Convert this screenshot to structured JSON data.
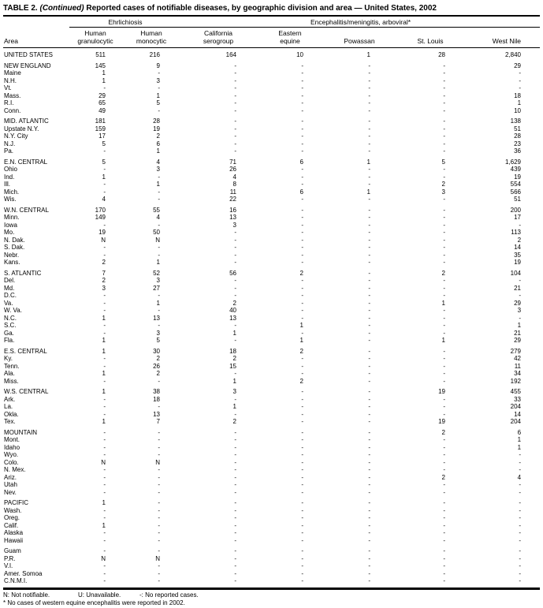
{
  "table": {
    "title": {
      "label": "TABLE 2.",
      "continued": "(Continued)",
      "rest": "Reported cases of notifiable diseases, by geographic division and area — United States, 2002"
    },
    "col_groups": [
      {
        "label": "Ehrlichiosis",
        "span": 2
      },
      {
        "label": "Encephalitis/meningitis, arboviral*",
        "span": 5
      }
    ],
    "columns": [
      "Area",
      "Human\ngranulocytic",
      "Human\nmonocytic",
      "California\nserogroup",
      "Eastern\nequine",
      "Powassan",
      "St. Louis",
      "West Nile"
    ],
    "groups": [
      {
        "rows": [
          [
            "UNITED STATES",
            "511",
            "216",
            "164",
            "10",
            "1",
            "28",
            "2,840"
          ]
        ]
      },
      {
        "rows": [
          [
            "NEW ENGLAND",
            "145",
            "9",
            "-",
            "-",
            "-",
            "-",
            "29"
          ],
          [
            "Maine",
            "1",
            "-",
            "-",
            "-",
            "-",
            "-",
            "-"
          ],
          [
            "N.H.",
            "1",
            "3",
            "-",
            "-",
            "-",
            "-",
            "-"
          ],
          [
            "Vt.",
            "-",
            "-",
            "-",
            "-",
            "-",
            "-",
            "-"
          ],
          [
            "Mass.",
            "29",
            "1",
            "-",
            "-",
            "-",
            "-",
            "18"
          ],
          [
            "R.I.",
            "65",
            "5",
            "-",
            "-",
            "-",
            "-",
            "1"
          ],
          [
            "Conn.",
            "49",
            "-",
            "-",
            "-",
            "-",
            "-",
            "10"
          ]
        ]
      },
      {
        "rows": [
          [
            "MID. ATLANTIC",
            "181",
            "28",
            "-",
            "-",
            "-",
            "-",
            "138"
          ],
          [
            "Upstate N.Y.",
            "159",
            "19",
            "-",
            "-",
            "-",
            "-",
            "51"
          ],
          [
            "N.Y. City",
            "17",
            "2",
            "-",
            "-",
            "-",
            "-",
            "28"
          ],
          [
            "N.J.",
            "5",
            "6",
            "-",
            "-",
            "-",
            "-",
            "23"
          ],
          [
            "Pa.",
            "-",
            "1",
            "-",
            "-",
            "-",
            "-",
            "36"
          ]
        ]
      },
      {
        "rows": [
          [
            "E.N. CENTRAL",
            "5",
            "4",
            "71",
            "6",
            "1",
            "5",
            "1,629"
          ],
          [
            "Ohio",
            "-",
            "3",
            "26",
            "-",
            "-",
            "-",
            "439"
          ],
          [
            "Ind.",
            "1",
            "-",
            "4",
            "-",
            "-",
            "-",
            "19"
          ],
          [
            "Ill.",
            "-",
            "1",
            "8",
            "-",
            "-",
            "2",
            "554"
          ],
          [
            "Mich.",
            "-",
            "-",
            "11",
            "6",
            "1",
            "3",
            "566"
          ],
          [
            "Wis.",
            "4",
            "-",
            "22",
            "-",
            "-",
            "-",
            "51"
          ]
        ]
      },
      {
        "rows": [
          [
            "W.N. CENTRAL",
            "170",
            "55",
            "16",
            "-",
            "-",
            "-",
            "200"
          ],
          [
            "Minn.",
            "149",
            "4",
            "13",
            "-",
            "-",
            "-",
            "17"
          ],
          [
            "Iowa",
            "-",
            "-",
            "3",
            "-",
            "-",
            "-",
            "-"
          ],
          [
            "Mo.",
            "19",
            "50",
            "-",
            "-",
            "-",
            "-",
            "113"
          ],
          [
            "N. Dak.",
            "N",
            "N",
            "-",
            "-",
            "-",
            "-",
            "2"
          ],
          [
            "S. Dak.",
            "-",
            "-",
            "-",
            "-",
            "-",
            "-",
            "14"
          ],
          [
            "Nebr.",
            "-",
            "-",
            "-",
            "-",
            "-",
            "-",
            "35"
          ],
          [
            "Kans.",
            "2",
            "1",
            "-",
            "-",
            "-",
            "-",
            "19"
          ]
        ]
      },
      {
        "rows": [
          [
            "S. ATLANTIC",
            "7",
            "52",
            "56",
            "2",
            "-",
            "2",
            "104"
          ],
          [
            "Del.",
            "2",
            "3",
            "-",
            "-",
            "-",
            "-",
            "-"
          ],
          [
            "Md.",
            "3",
            "27",
            "-",
            "-",
            "-",
            "-",
            "21"
          ],
          [
            "D.C.",
            "-",
            "-",
            "-",
            "-",
            "-",
            "-",
            "-"
          ],
          [
            "Va.",
            "-",
            "1",
            "2",
            "-",
            "-",
            "1",
            "29"
          ],
          [
            "W. Va.",
            "-",
            "-",
            "40",
            "-",
            "-",
            "-",
            "3"
          ],
          [
            "N.C.",
            "1",
            "13",
            "13",
            "-",
            "-",
            "-",
            "-"
          ],
          [
            "S.C.",
            "-",
            "-",
            "-",
            "1",
            "-",
            "-",
            "1"
          ],
          [
            "Ga.",
            "-",
            "3",
            "1",
            "-",
            "-",
            "-",
            "21"
          ],
          [
            "Fla.",
            "1",
            "5",
            "-",
            "1",
            "-",
            "1",
            "29"
          ]
        ]
      },
      {
        "rows": [
          [
            "E.S. CENTRAL",
            "1",
            "30",
            "18",
            "2",
            "-",
            "-",
            "279"
          ],
          [
            "Ky.",
            "-",
            "2",
            "2",
            "-",
            "-",
            "-",
            "42"
          ],
          [
            "Tenn.",
            "-",
            "26",
            "15",
            "-",
            "-",
            "-",
            "11"
          ],
          [
            "Ala.",
            "1",
            "2",
            "-",
            "-",
            "-",
            "-",
            "34"
          ],
          [
            "Miss.",
            "-",
            "-",
            "1",
            "2",
            "-",
            "-",
            "192"
          ]
        ]
      },
      {
        "rows": [
          [
            "W.S. CENTRAL",
            "1",
            "38",
            "3",
            "-",
            "-",
            "19",
            "455"
          ],
          [
            "Ark.",
            "-",
            "18",
            "-",
            "-",
            "-",
            "-",
            "33"
          ],
          [
            "La.",
            "-",
            "-",
            "1",
            "-",
            "-",
            "-",
            "204"
          ],
          [
            "Okla.",
            "-",
            "13",
            "-",
            "-",
            "-",
            "-",
            "14"
          ],
          [
            "Tex.",
            "1",
            "7",
            "2",
            "-",
            "-",
            "19",
            "204"
          ]
        ]
      },
      {
        "rows": [
          [
            "MOUNTAIN",
            "-",
            "-",
            "-",
            "-",
            "-",
            "2",
            "6"
          ],
          [
            "Mont.",
            "-",
            "-",
            "-",
            "-",
            "-",
            "-",
            "1"
          ],
          [
            "Idaho",
            "-",
            "-",
            "-",
            "-",
            "-",
            "-",
            "1"
          ],
          [
            "Wyo.",
            "-",
            "-",
            "-",
            "-",
            "-",
            "-",
            "-"
          ],
          [
            "Colo.",
            "N",
            "N",
            "-",
            "-",
            "-",
            "-",
            "-"
          ],
          [
            "N. Mex.",
            "-",
            "-",
            "-",
            "-",
            "-",
            "-",
            "-"
          ],
          [
            "Ariz.",
            "-",
            "-",
            "-",
            "-",
            "-",
            "2",
            "4"
          ],
          [
            "Utah",
            "-",
            "-",
            "-",
            "-",
            "-",
            "-",
            "-"
          ],
          [
            "Nev.",
            "-",
            "-",
            "-",
            "-",
            "-",
            "-",
            "-"
          ]
        ]
      },
      {
        "rows": [
          [
            "PACIFIC",
            "1",
            "-",
            "-",
            "-",
            "-",
            "-",
            "-"
          ],
          [
            "Wash.",
            "-",
            "-",
            "-",
            "-",
            "-",
            "-",
            "-"
          ],
          [
            "Oreg.",
            "-",
            "-",
            "-",
            "-",
            "-",
            "-",
            "-"
          ],
          [
            "Calif.",
            "1",
            "-",
            "-",
            "-",
            "-",
            "-",
            "-"
          ],
          [
            "Alaska",
            "-",
            "-",
            "-",
            "-",
            "-",
            "-",
            "-"
          ],
          [
            "Hawaii",
            "-",
            "-",
            "-",
            "-",
            "-",
            "-",
            "-"
          ]
        ]
      },
      {
        "rows": [
          [
            "Guam",
            "-",
            "-",
            "-",
            "-",
            "-",
            "-",
            "-"
          ],
          [
            "P.R.",
            "N",
            "N",
            "-",
            "-",
            "-",
            "-",
            "-"
          ],
          [
            "V.I.",
            "-",
            "-",
            "-",
            "-",
            "-",
            "-",
            "-"
          ],
          [
            "Amer. Somoa",
            "-",
            "-",
            "-",
            "-",
            "-",
            "-",
            "-"
          ],
          [
            "C.N.M.I.",
            "-",
            "-",
            "-",
            "-",
            "-",
            "-",
            "-"
          ]
        ]
      }
    ],
    "footnotes": {
      "legend": [
        "N: Not notifiable.",
        "U: Unavailable.",
        "-: No reported cases."
      ],
      "asterisk_note": "* No cases of western equine encephalitis were reported in 2002."
    }
  }
}
